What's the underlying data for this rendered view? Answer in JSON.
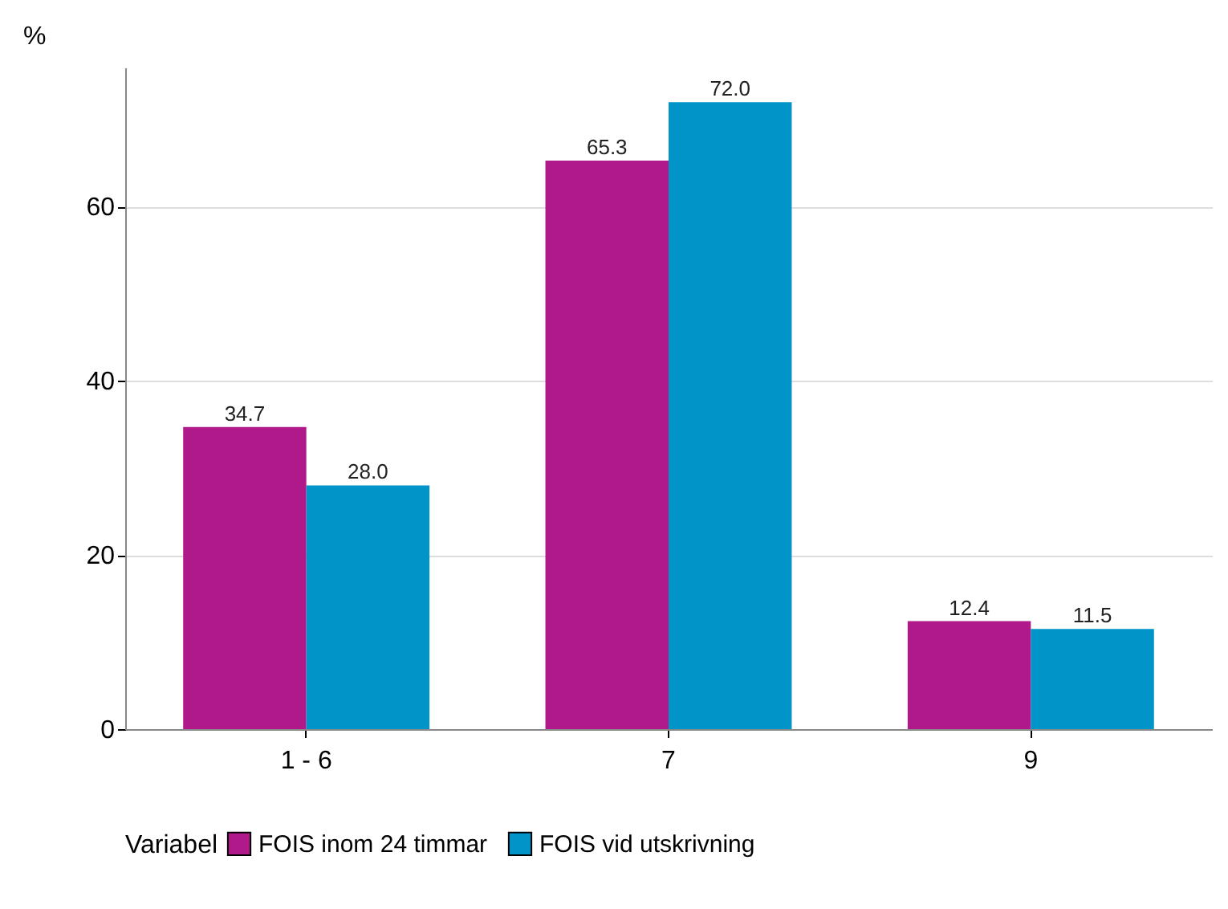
{
  "chart_data": {
    "type": "bar",
    "ylabel": "%",
    "legend_title": "Variabel",
    "categories": [
      "1 - 6",
      "7",
      "9"
    ],
    "series": [
      {
        "name": "FOIS inom 24 timmar",
        "color": "#b0198a",
        "values": [
          34.7,
          65.3,
          12.4
        ],
        "value_labels": [
          "34.7",
          "65.3",
          "12.4"
        ]
      },
      {
        "name": "FOIS vid utskrivning",
        "color": "#0094c8",
        "values": [
          28.0,
          72.0,
          11.5
        ],
        "value_labels": [
          "28.0",
          "72.0",
          "11.5"
        ]
      }
    ],
    "ylim": [
      0,
      76
    ],
    "yticks": [
      0,
      20,
      40,
      60
    ],
    "grid": "y",
    "legend": "bottom"
  }
}
